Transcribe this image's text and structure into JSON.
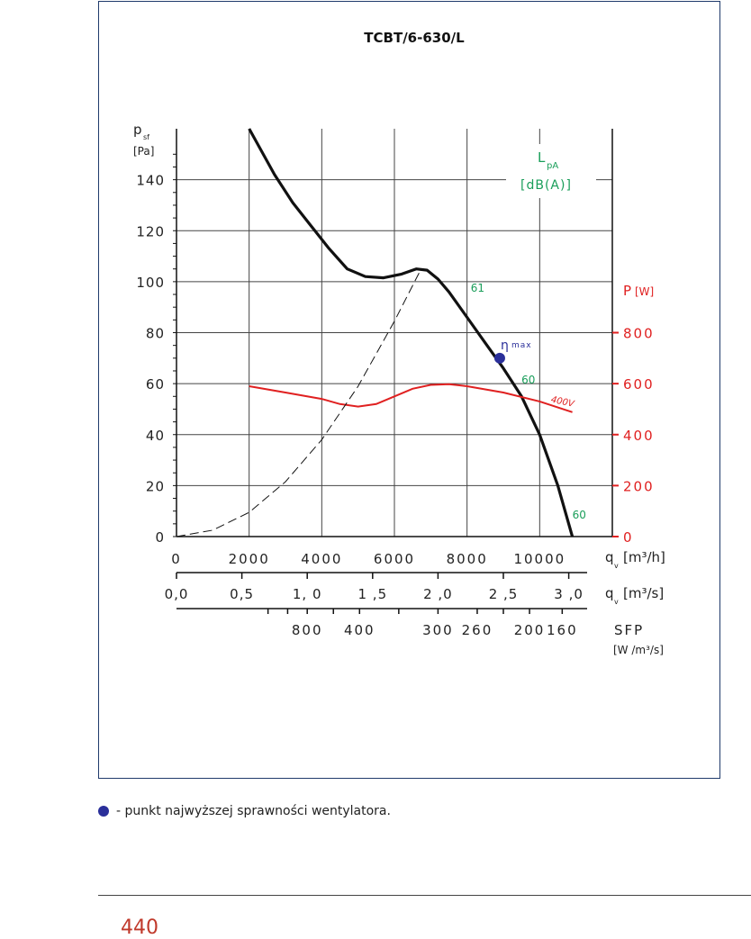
{
  "chart_data": {
    "type": "line",
    "title": "TCBT/6-630/L",
    "ylabel_main": "p",
    "ylabel_sub": "sf",
    "ylabel_unit": "[Pa]",
    "ylim": [
      0,
      160
    ],
    "xlim": [
      0,
      12000
    ],
    "y_ticks": [
      "0",
      "20",
      "40",
      "60",
      "80",
      "100",
      "120",
      "140"
    ],
    "y_tick_values": [
      0,
      20,
      40,
      60,
      80,
      100,
      120,
      140
    ],
    "x_ticks": [
      "0",
      "2000",
      "4000",
      "6000",
      "8000",
      "10000"
    ],
    "x_tick_values": [
      0,
      2000,
      4000,
      6000,
      8000,
      10000
    ],
    "x_label_main": "q",
    "x_label_sub": "v",
    "x_label_unit": "[m³/h]",
    "x2_ticks": [
      "0,0",
      "0,5",
      "1, 0",
      "1 ,5",
      "2 ,0",
      "2 ,5",
      "3 ,0"
    ],
    "x2_tick_values": [
      0,
      0.5,
      1.0,
      1.5,
      2.0,
      2.5,
      3.0
    ],
    "x2_label_main": "q",
    "x2_label_sub": "v",
    "x2_label_unit": "[m³/s]",
    "sfp_ticks": [
      "800",
      "400",
      "300",
      "260",
      "200",
      "160"
    ],
    "sfp_tick_flow": [
      1.0,
      1.4,
      2.0,
      2.3,
      2.7,
      2.95
    ],
    "sfp_label": "SFP",
    "sfp_unit": "[W /m³/s]",
    "power_axis_label": "P",
    "power_axis_unit": "[W]",
    "power_ticks": [
      "0",
      "200",
      "400",
      "600",
      "800"
    ],
    "power_tick_values": [
      0,
      200,
      400,
      600,
      800
    ],
    "power_lim": [
      0,
      1600
    ],
    "noise_label_main": "L",
    "noise_label_sub": "pA",
    "noise_label_unit": "[dB(A)]",
    "series": [
      {
        "kind": "pressure",
        "x": [
          2000,
          2700,
          3200,
          3700,
          4200,
          4700,
          5200,
          5700,
          6200,
          6600,
          6900,
          7200,
          7500,
          8000,
          8500,
          9000,
          9500,
          10000,
          10500,
          10900
        ],
        "y": [
          160,
          142,
          131,
          122,
          113,
          105,
          102,
          101.5,
          103,
          105,
          104.5,
          101,
          96,
          86,
          76,
          66,
          55,
          40,
          20,
          0
        ]
      },
      {
        "kind": "power",
        "name": "400V",
        "x": [
          2000,
          3000,
          4000,
          4500,
          5000,
          5500,
          6000,
          6500,
          7000,
          7500,
          8000,
          9000,
          10000,
          10900
        ],
        "y": [
          590,
          565,
          540,
          520,
          510,
          520,
          550,
          580,
          595,
          598,
          590,
          565,
          530,
          488
        ]
      },
      {
        "kind": "system",
        "x": [
          0,
          1000,
          2000,
          3000,
          4000,
          5000,
          6000,
          6700
        ],
        "y": [
          0,
          2.5,
          9.5,
          21.5,
          38,
          59,
          84.5,
          104
        ]
      }
    ],
    "annotations": [
      {
        "text": "61",
        "x": 8100,
        "y": 96
      },
      {
        "text": "60",
        "x": 9500,
        "y": 60
      },
      {
        "text": "60",
        "x": 10900,
        "y": 7
      }
    ],
    "eta_point": {
      "x": 8900,
      "y": 70,
      "symbol": "η",
      "sub": "max"
    }
  },
  "footnote": "- punkt najwyższej sprawności wentylatora.",
  "page_number": "440",
  "colors": {
    "pressure": "#111111",
    "power": "#e02020",
    "noise": "#1a9e5a",
    "eta": "#2a2f9a",
    "frame": "#1f3a6b"
  }
}
